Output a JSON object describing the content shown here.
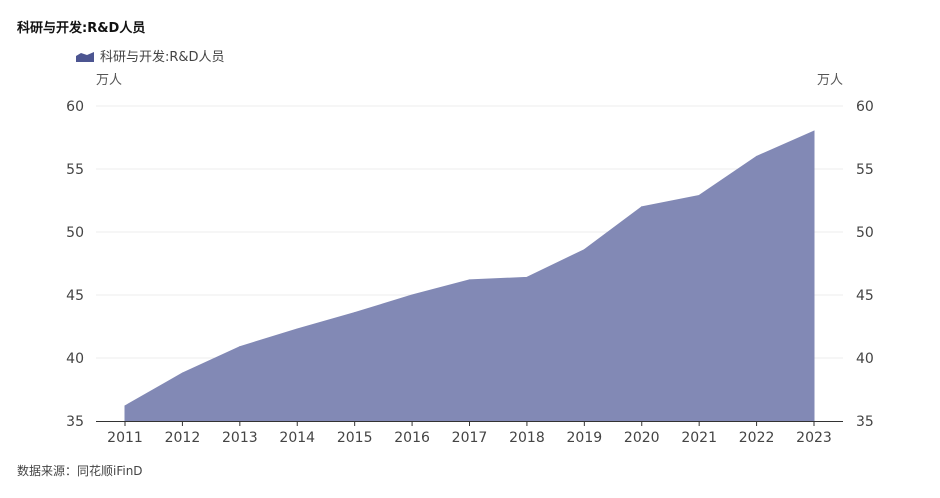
{
  "chart_data": {
    "type": "area",
    "title": "科研与开发:R&D人员",
    "legend": [
      "科研与开发:R&D人员"
    ],
    "legend_placement": "top-left",
    "ylabel_left": "万人",
    "ylabel_right": "万人",
    "ylim": [
      35,
      60
    ],
    "yticks": [
      35,
      40,
      45,
      50,
      55,
      60
    ],
    "grid": true,
    "categories": [
      "2011",
      "2012",
      "2013",
      "2014",
      "2015",
      "2016",
      "2017",
      "2018",
      "2019",
      "2020",
      "2021",
      "2022",
      "2023"
    ],
    "series": [
      {
        "name": "科研与开发:R&D人员",
        "color": "#8289b5",
        "values": [
          36.2,
          38.8,
          40.9,
          42.3,
          43.6,
          45.0,
          46.2,
          46.4,
          48.6,
          52.0,
          52.9,
          56.0,
          58.0
        ]
      }
    ]
  },
  "source": "数据来源：同花顺iFinD"
}
